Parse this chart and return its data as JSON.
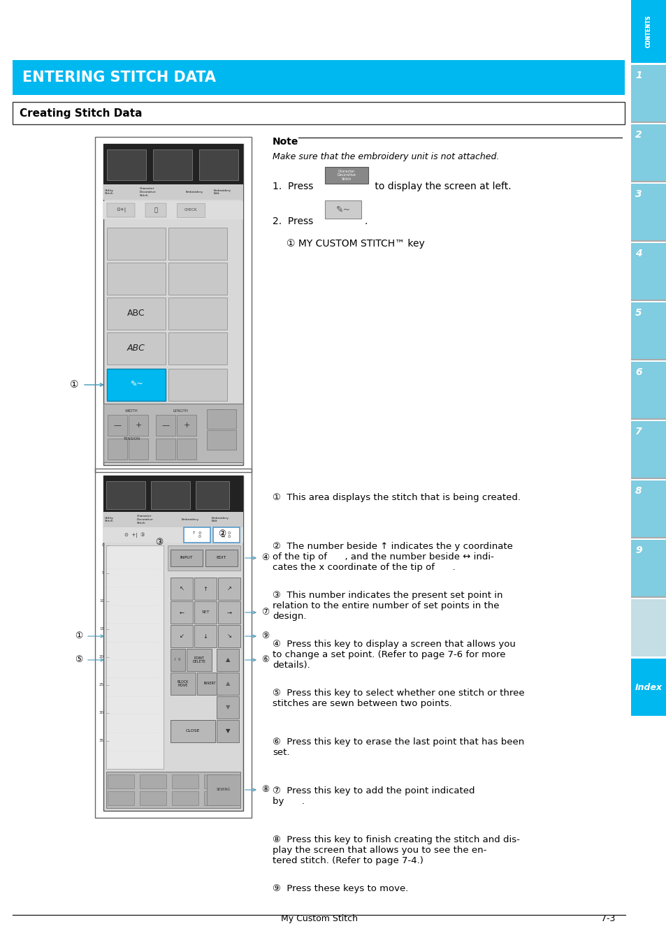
{
  "page_bg": "#ffffff",
  "header_bar_color": "#00b8f0",
  "header_text": "ENTERING STITCH DATA",
  "header_text_color": "#ffffff",
  "section_title": "Creating Stitch Data",
  "note_title": "Note",
  "note_text": "Make sure that the embroidery unit is not attached.",
  "step1_a": "1.  Press",
  "step1_b": "to display the screen at left.",
  "step2_a": "2.  Press",
  "step2_circle_sub": "① MY CUSTOM STITCH™ key",
  "numbered_items": [
    [
      "①",
      "This area displays the stitch that is being created."
    ],
    [
      "②",
      "The number beside ↑ indicates the y coordinate\nof the tip of      , and the number beside ↔ indi-\ncates the x coordinate of the tip of      ."
    ],
    [
      "③",
      "This number indicates the present set point in\nrelation to the entire number of set points in the\ndesign."
    ],
    [
      "④",
      "Press this key to display a screen that allows you\nto change a set point. (Refer to page 7-6 for more\ndetails)."
    ],
    [
      "⑤",
      "Press this key to select whether one stitch or three\nstitches are sewn between two points."
    ],
    [
      "⑥",
      "Press this key to erase the last point that has been\nset."
    ],
    [
      "⑦",
      "Press this key to add the point indicated\nby      ."
    ],
    [
      "⑧",
      "Press this key to finish creating the stitch and dis-\nplay the screen that allows you to see the en-\ntered stitch. (Refer to page 7-4.)"
    ],
    [
      "⑨",
      "Press these keys to move."
    ]
  ],
  "footer_center": "My Custom Stitch",
  "footer_page": "7-3",
  "sidebar_blue": "#00b8f0",
  "sidebar_light": "#80cce0",
  "screen_bg": "#d8d8d8",
  "screen_border": "#444444",
  "screen_dark_bar": "#222222",
  "button_gray": "#b8b8b8",
  "button_mid": "#c8c8c8",
  "button_light": "#d8d8d8",
  "white": "#ffffff",
  "black": "#000000",
  "arrow_color": "#4499bb"
}
